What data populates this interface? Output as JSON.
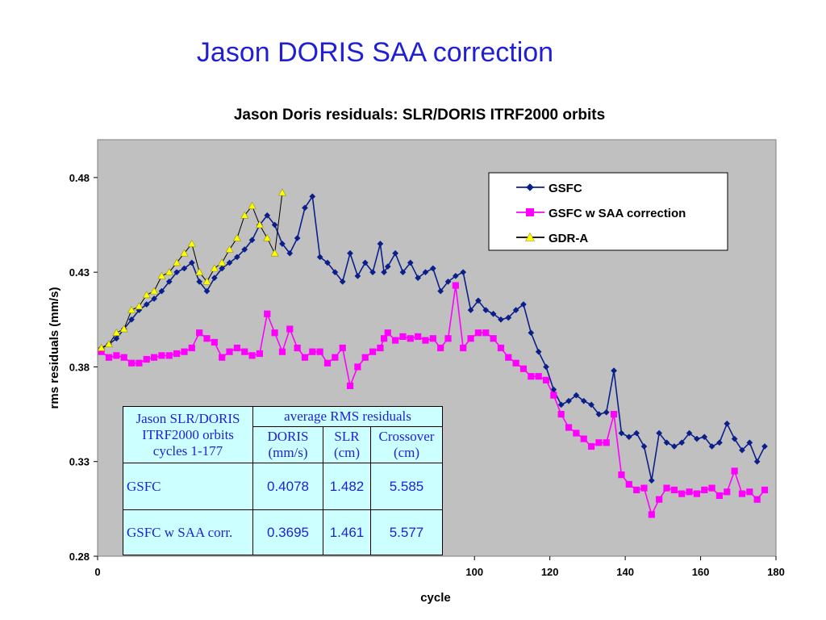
{
  "slide": {
    "title": "Jason DORIS SAA correction"
  },
  "chart_data": {
    "type": "line",
    "title": "Jason Doris residuals:  SLR/DORIS ITRF2000 orbits",
    "xlabel": "cycle",
    "ylabel": "rms residuals (mm/s)",
    "xlim": [
      0,
      180
    ],
    "ylim": [
      0.28,
      0.5
    ],
    "x_ticks": [
      "0",
      "100",
      "120",
      "140",
      "160",
      "180"
    ],
    "y_ticks": [
      "0.28",
      "0.33",
      "0.38",
      "0.43",
      "0.48"
    ],
    "grid": false,
    "legend": "top-right",
    "series": [
      {
        "name": "GSFC",
        "color": "#0b1f8a",
        "marker": "diamond",
        "x": [
          1,
          3,
          5,
          7,
          9,
          11,
          13,
          15,
          17,
          19,
          21,
          23,
          25,
          27,
          29,
          31,
          33,
          35,
          37,
          39,
          41,
          43,
          45,
          47,
          49,
          51,
          53,
          55,
          57,
          59,
          61,
          63,
          65,
          67,
          69,
          71,
          73,
          75,
          76,
          77,
          79,
          81,
          83,
          85,
          87,
          89,
          91,
          93,
          95,
          97,
          99,
          101,
          103,
          105,
          107,
          109,
          111,
          113,
          115,
          117,
          119,
          121,
          123,
          125,
          127,
          129,
          131,
          133,
          135,
          137,
          139,
          141,
          143,
          145,
          147,
          149,
          151,
          153,
          155,
          157,
          159,
          161,
          163,
          165,
          167,
          169,
          171,
          173,
          175,
          177
        ],
        "values": [
          0.39,
          0.392,
          0.395,
          0.4,
          0.405,
          0.41,
          0.413,
          0.416,
          0.42,
          0.425,
          0.43,
          0.432,
          0.435,
          0.425,
          0.42,
          0.427,
          0.432,
          0.435,
          0.438,
          0.442,
          0.447,
          0.455,
          0.46,
          0.455,
          0.445,
          0.44,
          0.448,
          0.464,
          0.47,
          0.438,
          0.435,
          0.43,
          0.425,
          0.44,
          0.428,
          0.435,
          0.43,
          0.445,
          0.43,
          0.433,
          0.44,
          0.43,
          0.435,
          0.427,
          0.43,
          0.432,
          0.42,
          0.425,
          0.428,
          0.43,
          0.41,
          0.415,
          0.41,
          0.408,
          0.405,
          0.406,
          0.41,
          0.413,
          0.398,
          0.388,
          0.38,
          0.368,
          0.36,
          0.362,
          0.365,
          0.362,
          0.36,
          0.355,
          0.356,
          0.378,
          0.345,
          0.343,
          0.345,
          0.338,
          0.32,
          0.345,
          0.34,
          0.338,
          0.34,
          0.345,
          0.342,
          0.343,
          0.338,
          0.34,
          0.35,
          0.342,
          0.336,
          0.34,
          0.33,
          0.338
        ]
      },
      {
        "name": "GSFC w SAA correction",
        "color": "#ff00ff",
        "marker": "square",
        "x": [
          1,
          3,
          5,
          7,
          9,
          11,
          13,
          15,
          17,
          19,
          21,
          23,
          25,
          27,
          29,
          31,
          33,
          35,
          37,
          39,
          41,
          43,
          45,
          47,
          49,
          51,
          53,
          55,
          57,
          59,
          61,
          63,
          65,
          67,
          69,
          71,
          73,
          75,
          76,
          77,
          79,
          81,
          83,
          85,
          87,
          89,
          91,
          93,
          95,
          97,
          99,
          101,
          103,
          105,
          107,
          109,
          111,
          113,
          115,
          117,
          119,
          121,
          123,
          125,
          127,
          129,
          131,
          133,
          135,
          137,
          139,
          141,
          143,
          145,
          147,
          149,
          151,
          153,
          155,
          157,
          159,
          161,
          163,
          165,
          167,
          169,
          171,
          173,
          175,
          177
        ],
        "values": [
          0.388,
          0.385,
          0.386,
          0.385,
          0.382,
          0.382,
          0.384,
          0.385,
          0.386,
          0.386,
          0.387,
          0.388,
          0.39,
          0.398,
          0.395,
          0.393,
          0.385,
          0.388,
          0.39,
          0.388,
          0.386,
          0.387,
          0.408,
          0.398,
          0.388,
          0.4,
          0.39,
          0.385,
          0.388,
          0.388,
          0.382,
          0.385,
          0.39,
          0.37,
          0.38,
          0.385,
          0.388,
          0.39,
          0.395,
          0.398,
          0.394,
          0.396,
          0.395,
          0.396,
          0.394,
          0.395,
          0.39,
          0.395,
          0.423,
          0.39,
          0.395,
          0.398,
          0.398,
          0.395,
          0.39,
          0.385,
          0.382,
          0.379,
          0.375,
          0.375,
          0.373,
          0.365,
          0.355,
          0.348,
          0.345,
          0.342,
          0.338,
          0.34,
          0.34,
          0.355,
          0.323,
          0.318,
          0.315,
          0.316,
          0.302,
          0.31,
          0.316,
          0.315,
          0.313,
          0.314,
          0.313,
          0.315,
          0.316,
          0.312,
          0.314,
          0.325,
          0.313,
          0.314,
          0.31,
          0.315
        ]
      },
      {
        "name": "GDR-A",
        "color": "#ffff00",
        "marker": "triangle",
        "x": [
          1,
          3,
          5,
          7,
          9,
          11,
          13,
          15,
          17,
          19,
          21,
          23,
          25,
          27,
          29,
          31,
          33,
          35,
          37,
          39,
          41,
          43,
          45,
          47,
          49,
          51,
          53,
          55,
          57,
          59,
          61,
          63,
          65,
          67,
          69,
          71,
          73,
          75,
          77,
          79,
          81,
          83,
          85,
          87,
          89,
          91,
          93,
          95,
          97,
          99,
          101,
          103,
          105,
          107,
          109,
          111,
          113,
          115,
          117,
          119,
          121,
          123,
          125,
          127,
          129,
          131,
          133,
          135,
          137,
          139,
          141,
          143,
          145,
          147,
          149,
          151,
          153,
          155,
          157,
          159,
          161,
          163,
          165,
          167,
          169,
          171,
          173,
          175,
          177
        ],
        "values": [
          0.39,
          0.392,
          0.398,
          0.4,
          0.41,
          0.412,
          0.418,
          0.42,
          0.428,
          0.43,
          0.435,
          0.44,
          0.445,
          0.43,
          0.425,
          0.432,
          0.435,
          0.442,
          0.448,
          0.46,
          0.465,
          0.455,
          0.448,
          0.44,
          0.472,
          null,
          null,
          null,
          null,
          null,
          null,
          null,
          null,
          null,
          null,
          null,
          null,
          null,
          null,
          null,
          null,
          null,
          null,
          null,
          null,
          null,
          null,
          null,
          null,
          null,
          null,
          null,
          null,
          null,
          null,
          null,
          null,
          null,
          null,
          null,
          null,
          null,
          null,
          null,
          null,
          null,
          null,
          null,
          null,
          null,
          null,
          null,
          null,
          null,
          null,
          null,
          null,
          null,
          null,
          null,
          null,
          null,
          null,
          null,
          null,
          null,
          null,
          null,
          null
        ]
      }
    ]
  },
  "table": {
    "header_row1": {
      "left": "Jason SLR/DORIS ITRF2000 orbits cycles 1-177",
      "group": "average RMS residuals"
    },
    "header_row2": [
      "DORIS (mm/s)",
      "SLR (cm)",
      "Crossover (cm)"
    ],
    "rows": [
      {
        "label": "GSFC",
        "doris": "0.4078",
        "slr": "1.482",
        "crossover": "5.585"
      },
      {
        "label": "GSFC w SAA corr.",
        "doris": "0.3695",
        "slr": "1.461",
        "crossover": "5.577"
      }
    ]
  }
}
